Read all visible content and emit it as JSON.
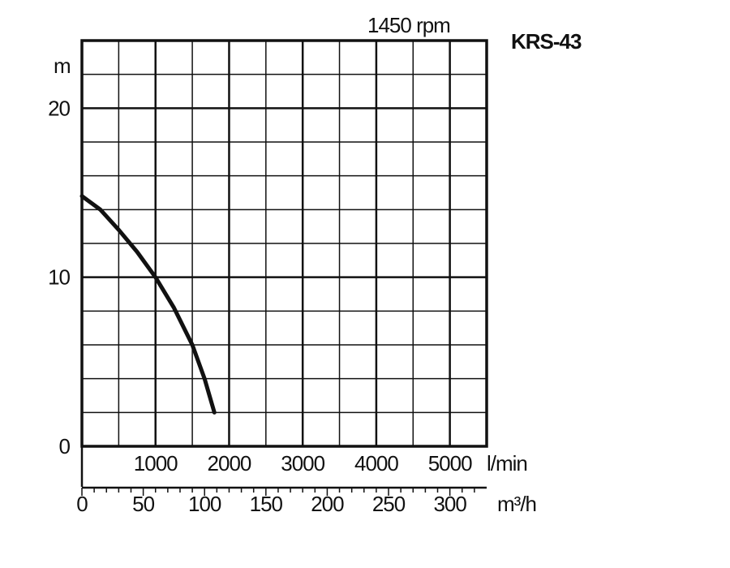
{
  "chart_data": {
    "type": "line",
    "title": "KRS-43",
    "subtitle": "1450 rpm",
    "ylabel": "m",
    "xlabel_primary": "l/min",
    "xlabel_secondary": "m³/h",
    "ylim": [
      0,
      24
    ],
    "xlim_lmin": [
      0,
      5500
    ],
    "xlim_m3h": [
      0,
      330
    ],
    "y_ticks": [
      "0",
      "10",
      "20"
    ],
    "x_ticks_lmin": [
      "1000",
      "2000",
      "3000",
      "4000",
      "5000"
    ],
    "x_ticks_m3h": [
      "0",
      "50",
      "100",
      "150",
      "200",
      "250",
      "300"
    ],
    "grid": true,
    "series": [
      {
        "x": [
          0,
          15,
          30,
          45,
          60,
          75,
          90,
          100,
          108
        ],
        "y": [
          14.8,
          14.0,
          12.8,
          11.5,
          10.0,
          8.2,
          6.0,
          4.0,
          2.0
        ]
      }
    ]
  }
}
